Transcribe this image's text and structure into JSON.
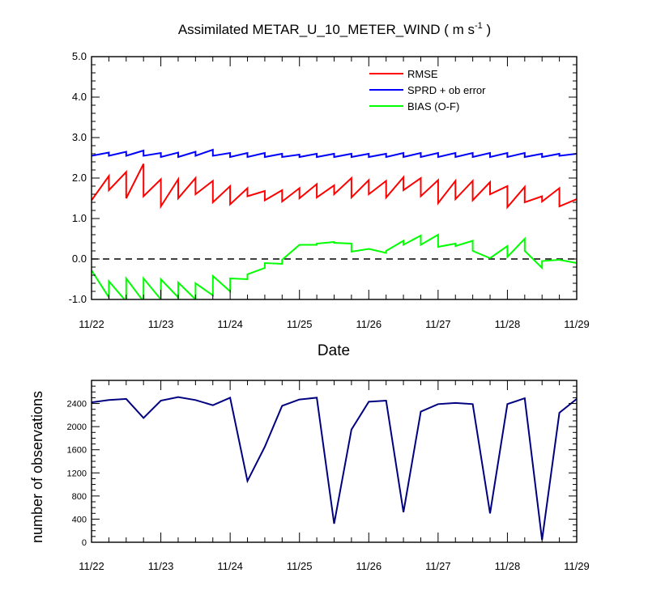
{
  "chart_data": [
    {
      "type": "line",
      "title_main": "Assimilated METAR_U_10_METER_WIND ( m s",
      "title_sup": "-1",
      "title_end": " )",
      "xlabel": "Date",
      "ylabel": "",
      "x_ticks": [
        "11/22",
        "11/23",
        "11/24",
        "11/25",
        "11/26",
        "11/27",
        "11/28",
        "11/29"
      ],
      "x_range_days": [
        22,
        29
      ],
      "ylim": [
        -1.0,
        5.0
      ],
      "y_ticks": [
        "-1.0",
        "0.0",
        "1.0",
        "2.0",
        "3.0",
        "4.0",
        "5.0"
      ],
      "zero_line": "dashed",
      "legend_position": "top-right",
      "series": [
        {
          "name": "RMSE",
          "color": "#ff0000",
          "x": [
            22.0,
            22.25,
            22.25,
            22.5,
            22.5,
            22.75,
            22.75,
            23.0,
            23.0,
            23.25,
            23.25,
            23.5,
            23.5,
            23.75,
            23.75,
            24.0,
            24.0,
            24.25,
            24.25,
            24.5,
            24.5,
            24.75,
            24.75,
            25.0,
            25.0,
            25.25,
            25.25,
            25.5,
            25.5,
            25.75,
            25.75,
            26.0,
            26.0,
            26.25,
            26.25,
            26.5,
            26.5,
            26.75,
            26.75,
            27.0,
            27.0,
            27.25,
            27.25,
            27.5,
            27.5,
            27.75,
            27.75,
            28.0,
            28.0,
            28.25,
            28.25,
            28.5,
            28.5,
            28.75,
            28.75,
            29.0
          ],
          "y": [
            1.45,
            2.05,
            1.7,
            2.15,
            1.5,
            2.35,
            1.55,
            1.97,
            1.3,
            1.97,
            1.5,
            2.0,
            1.6,
            1.93,
            1.4,
            1.8,
            1.35,
            1.75,
            1.55,
            1.68,
            1.45,
            1.7,
            1.42,
            1.75,
            1.5,
            1.85,
            1.52,
            1.82,
            1.6,
            2.0,
            1.52,
            1.95,
            1.6,
            1.93,
            1.52,
            2.02,
            1.7,
            2.0,
            1.55,
            1.95,
            1.38,
            1.93,
            1.48,
            1.93,
            1.45,
            1.9,
            1.6,
            1.8,
            1.28,
            1.78,
            1.4,
            1.55,
            1.42,
            1.75,
            1.3,
            1.48
          ]
        },
        {
          "name": "SPRD + ob error",
          "color": "#0000ff",
          "x": [
            22.0,
            22.25,
            22.25,
            22.5,
            22.5,
            22.75,
            22.75,
            23.0,
            23.0,
            23.25,
            23.25,
            23.5,
            23.5,
            23.75,
            23.75,
            24.0,
            24.0,
            24.25,
            24.25,
            24.5,
            24.5,
            24.75,
            24.75,
            25.0,
            25.0,
            25.25,
            25.25,
            25.5,
            25.5,
            25.75,
            25.75,
            26.0,
            26.0,
            26.25,
            26.25,
            26.5,
            26.5,
            26.75,
            26.75,
            27.0,
            27.0,
            27.25,
            27.25,
            27.5,
            27.5,
            27.75,
            27.75,
            28.0,
            28.0,
            28.25,
            28.25,
            28.5,
            28.5,
            28.75,
            28.75,
            29.0
          ],
          "y": [
            2.55,
            2.63,
            2.55,
            2.65,
            2.55,
            2.68,
            2.55,
            2.62,
            2.52,
            2.63,
            2.52,
            2.65,
            2.55,
            2.7,
            2.55,
            2.62,
            2.52,
            2.62,
            2.52,
            2.62,
            2.52,
            2.6,
            2.52,
            2.58,
            2.52,
            2.6,
            2.52,
            2.6,
            2.52,
            2.6,
            2.52,
            2.6,
            2.52,
            2.6,
            2.52,
            2.62,
            2.52,
            2.62,
            2.52,
            2.62,
            2.52,
            2.62,
            2.52,
            2.62,
            2.52,
            2.62,
            2.52,
            2.62,
            2.52,
            2.62,
            2.52,
            2.6,
            2.52,
            2.6,
            2.55,
            2.6
          ]
        },
        {
          "name": "BIAS (O-F)",
          "color": "#00ff00",
          "x": [
            22.0,
            22.25,
            22.25,
            22.5,
            22.5,
            22.75,
            22.75,
            23.0,
            23.0,
            23.25,
            23.25,
            23.5,
            23.5,
            23.75,
            23.75,
            24.0,
            24.0,
            24.25,
            24.25,
            24.5,
            24.5,
            24.75,
            24.75,
            25.0,
            25.0,
            25.25,
            25.25,
            25.5,
            25.5,
            25.75,
            25.75,
            26.0,
            26.0,
            26.25,
            26.25,
            26.5,
            26.5,
            26.75,
            26.75,
            27.0,
            27.0,
            27.25,
            27.25,
            27.5,
            27.5,
            27.75,
            27.75,
            28.0,
            28.0,
            28.25,
            28.25,
            28.5,
            28.5,
            28.75,
            28.75,
            29.0
          ],
          "y": [
            -0.28,
            -0.95,
            -0.55,
            -1.05,
            -0.48,
            -1.05,
            -0.48,
            -1.0,
            -0.5,
            -0.95,
            -0.58,
            -1.0,
            -0.6,
            -0.9,
            -0.42,
            -0.8,
            -0.48,
            -0.5,
            -0.38,
            -0.22,
            -0.1,
            -0.12,
            -0.02,
            0.35,
            0.35,
            0.35,
            0.38,
            0.42,
            0.4,
            0.38,
            0.18,
            0.25,
            0.25,
            0.15,
            0.2,
            0.45,
            0.35,
            0.58,
            0.35,
            0.6,
            0.3,
            0.38,
            0.32,
            0.45,
            0.2,
            0.02,
            0.02,
            0.32,
            0.05,
            0.5,
            0.2,
            -0.22,
            -0.05,
            -0.02,
            -0.02,
            -0.1
          ]
        }
      ]
    },
    {
      "type": "line",
      "xlabel": "",
      "ylabel": "number of observations",
      "x_ticks": [
        "11/22",
        "11/23",
        "11/24",
        "11/25",
        "11/26",
        "11/27",
        "11/28",
        "11/29"
      ],
      "x_range_days": [
        22,
        29
      ],
      "ylim": [
        0,
        2800
      ],
      "y_ticks": [
        "0",
        "400",
        "800",
        "1200",
        "1600",
        "2000",
        "2400"
      ],
      "series": [
        {
          "color": "#000080",
          "x": [
            22.0,
            22.25,
            22.5,
            22.75,
            23.0,
            23.25,
            23.5,
            23.75,
            24.0,
            24.25,
            24.5,
            24.75,
            25.0,
            25.25,
            25.5,
            25.75,
            26.0,
            26.25,
            26.5,
            26.75,
            27.0,
            27.25,
            27.5,
            27.75,
            28.0,
            28.25,
            28.5,
            28.75,
            29.0
          ],
          "y": [
            2420,
            2460,
            2480,
            2150,
            2450,
            2510,
            2460,
            2370,
            2500,
            1060,
            1650,
            2360,
            2470,
            2500,
            320,
            1950,
            2430,
            2450,
            520,
            2260,
            2390,
            2410,
            2390,
            500,
            2390,
            2490,
            40,
            2240,
            2480
          ]
        }
      ]
    }
  ]
}
